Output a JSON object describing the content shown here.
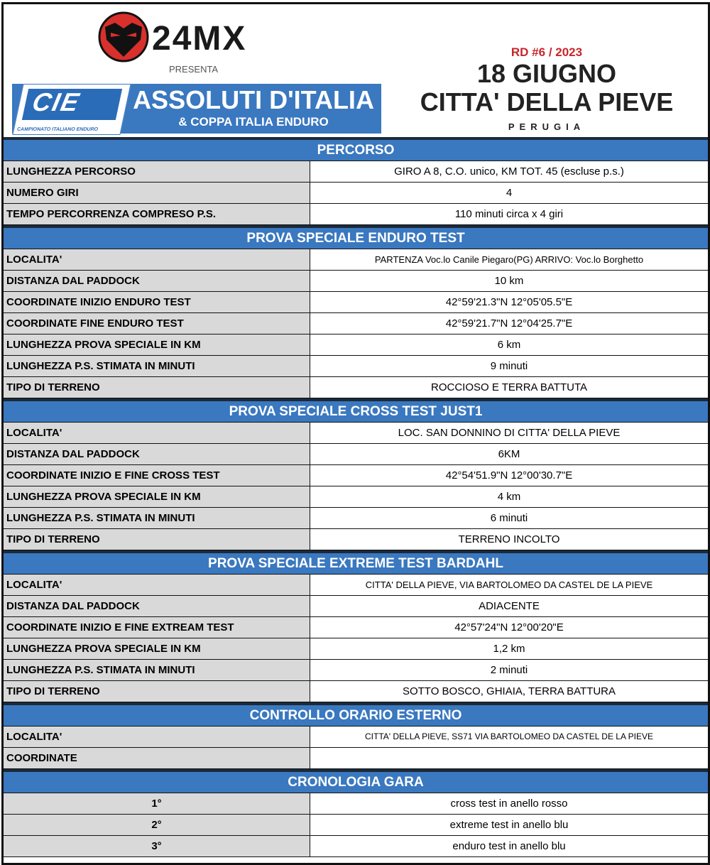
{
  "header": {
    "sponsor_logo": "24MX",
    "presenta": "PRESENTA",
    "banner_logo": "CIE",
    "banner_logo_sub": "CAMPIONATO ITALIANO ENDURO",
    "banner_title": "ASSOLUTI D'ITALIA",
    "banner_subtitle": "& COPPA ITALIA ENDURO",
    "round": "RD #6 / 2023",
    "date": "18 GIUGNO",
    "city": "CITTA' DELLA PIEVE",
    "province": "PERUGIA"
  },
  "colors": {
    "header_blue": "#3a78c0",
    "label_gray": "#d9d9d9",
    "round_red": "#c8262c"
  },
  "sections": [
    {
      "title": "PERCORSO",
      "rows": [
        {
          "label": "LUNGHEZZA PERCORSO",
          "value": "GIRO A 8,  C.O. unico,  KM TOT. 45 (escluse p.s.)"
        },
        {
          "label": "NUMERO GIRI",
          "value": "4"
        },
        {
          "label": "TEMPO PERCORRENZA COMPRESO P.S.",
          "value": "110 minuti circa  x 4 giri"
        }
      ]
    },
    {
      "title": "PROVA SPECIALE ENDURO TEST",
      "rows": [
        {
          "label": "LOCALITA'",
          "value": "PARTENZA Voc.lo Canile Piegaro(PG) ARRIVO: Voc.lo Borghetto"
        },
        {
          "label": "DISTANZA DAL PADDOCK",
          "value": "10 km"
        },
        {
          "label": "COORDINATE INIZIO ENDURO TEST",
          "value": "42°59'21.3\"N 12°05'05.5\"E"
        },
        {
          "label": "COORDINATE FINE ENDURO TEST",
          "value": "42°59'21.7\"N 12°04'25.7\"E"
        },
        {
          "label": "LUNGHEZZA PROVA SPECIALE IN KM",
          "value": "6 km"
        },
        {
          "label": "LUNGHEZZA P.S. STIMATA IN MINUTI",
          "value": "9 minuti"
        },
        {
          "label": "TIPO DI TERRENO",
          "value": "ROCCIOSO E TERRA BATTUTA"
        }
      ]
    },
    {
      "title": "PROVA SPECIALE CROSS TEST JUST1",
      "rows": [
        {
          "label": "LOCALITA'",
          "value": "LOC. SAN DONNINO DI CITTA' DELLA PIEVE"
        },
        {
          "label": "DISTANZA DAL PADDOCK",
          "value": "6KM"
        },
        {
          "label": "COORDINATE INIZIO E FINE CROSS TEST",
          "value": "42°54'51.9\"N 12°00'30.7\"E"
        },
        {
          "label": "LUNGHEZZA PROVA SPECIALE IN KM",
          "value": "4 km"
        },
        {
          "label": "LUNGHEZZA P.S. STIMATA IN MINUTI",
          "value": "6 minuti"
        },
        {
          "label": "TIPO DI TERRENO",
          "value": "TERRENO INCOLTO"
        }
      ]
    },
    {
      "title": "PROVA SPECIALE EXTREME TEST BARDAHL",
      "rows": [
        {
          "label": "LOCALITA'",
          "value": "CITTA' DELLA PIEVE, VIA BARTOLOMEO DA CASTEL DE LA PIEVE"
        },
        {
          "label": "DISTANZA DAL PADDOCK",
          "value": "ADIACENTE"
        },
        {
          "label": "COORDINATE INIZIO E FINE EXTREAM TEST",
          "value": "42°57'24\"N 12°00'20\"E"
        },
        {
          "label": "LUNGHEZZA PROVA SPECIALE IN KM",
          "value": "1,2 km"
        },
        {
          "label": "LUNGHEZZA P.S. STIMATA IN MINUTI",
          "value": "2 minuti"
        },
        {
          "label": "TIPO DI TERRENO",
          "value": "SOTTO BOSCO, GHIAIA, TERRA BATTURA"
        }
      ]
    },
    {
      "title": "CONTROLLO ORARIO ESTERNO",
      "rows": [
        {
          "label": "LOCALITA'",
          "value": "CITTA' DELLA PIEVE, SS71  VIA BARTOLOMEO DA CASTEL DE LA PIEVE"
        },
        {
          "label": "COORDINATE",
          "value": ""
        }
      ]
    },
    {
      "title": "CRONOLOGIA GARA",
      "rows": [
        {
          "label": "1°",
          "value": "cross test in anello rosso"
        },
        {
          "label": "2°",
          "value": "extreme test in anello blu"
        },
        {
          "label": "3°",
          "value": "enduro test in anello blu"
        }
      ]
    }
  ]
}
